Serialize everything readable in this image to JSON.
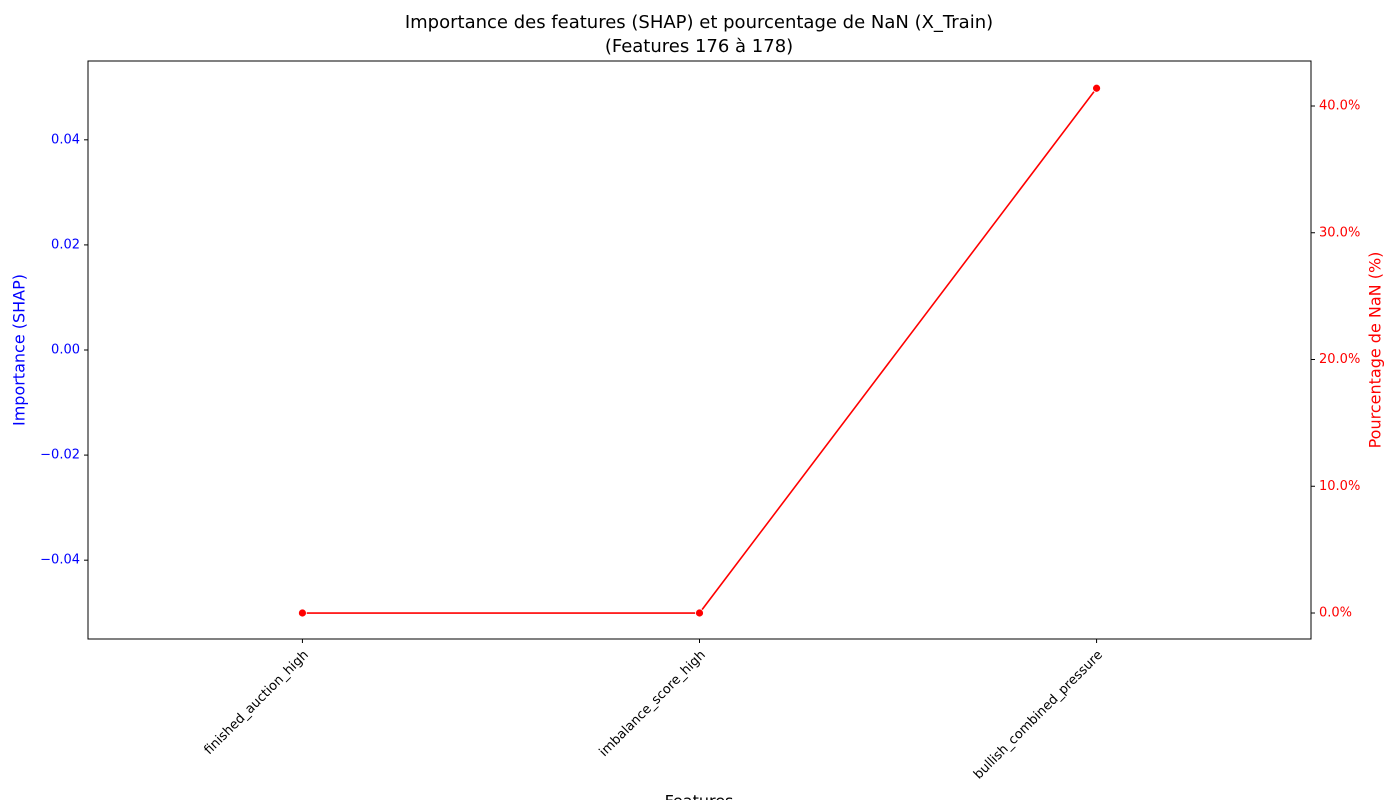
{
  "chart_data": {
    "type": "bar_line",
    "title": "Importance des features (SHAP) et pourcentage de NaN (X_Train)",
    "subtitle": "(Features 176 à 178)",
    "x_label": "Features",
    "y_label": "Importance (SHAP)",
    "y2_label": "Pourcentage de NaN (%)",
    "categories": [
      "finished_auction_high",
      "imbalance_score_high",
      "bullish_combined_pressure"
    ],
    "series": [
      {
        "type": "bar",
        "color": "#0000ff",
        "values": [
          0,
          0,
          0
        ]
      },
      {
        "type": "line",
        "axis": "y2",
        "color": "#ff0000",
        "values": [
          0,
          0,
          41.4
        ]
      }
    ],
    "ylim": [
      -0.055,
      0.055
    ],
    "yticks": [
      {
        "value": -0.04,
        "label": "−0.04"
      },
      {
        "value": -0.02,
        "label": "−0.02"
      },
      {
        "value": 0,
        "label": "0.00"
      },
      0.02,
      0.04
    ],
    "y_tick_color": "#0000ff",
    "y2lim": [
      -2.05,
      43.55
    ],
    "y2ticks": [
      {
        "value": 0,
        "label": "0.0%"
      },
      {
        "value": 10,
        "label": "10.0%"
      },
      {
        "value": 20,
        "label": "20.0%"
      },
      {
        "value": 30,
        "label": "30.0%"
      },
      {
        "value": 40,
        "label": "40.0%"
      }
    ],
    "y2_tick_color": "#ff0000",
    "grid": false
  }
}
